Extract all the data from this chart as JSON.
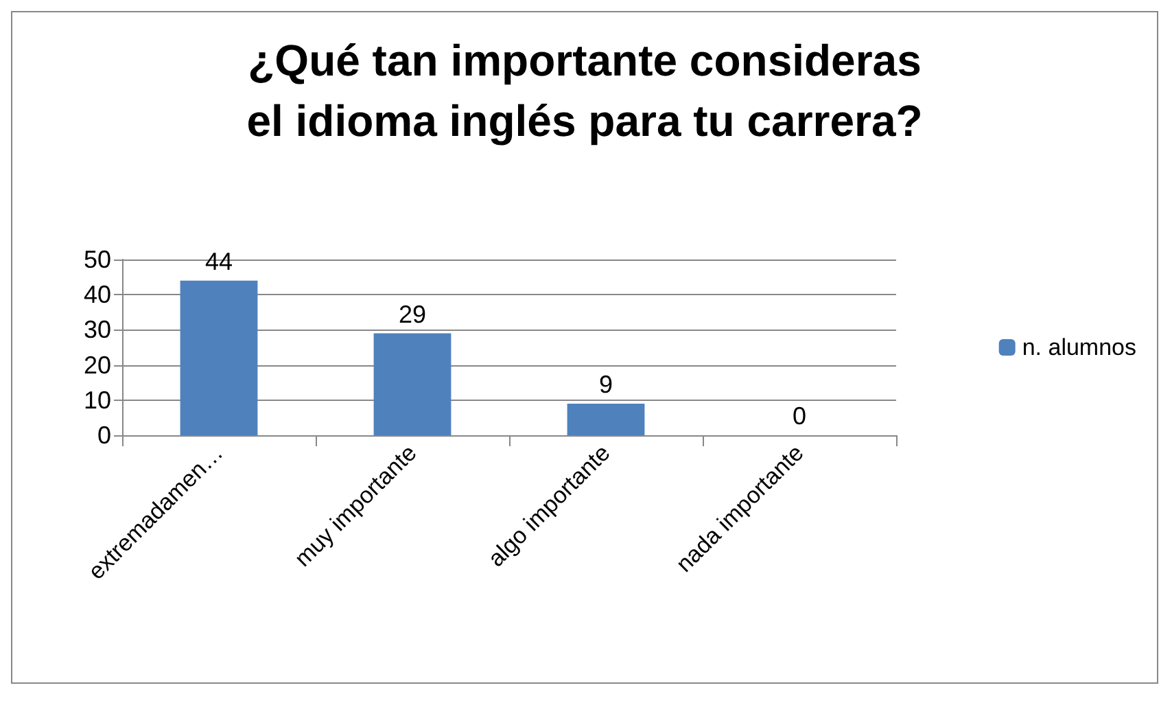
{
  "chart_data": {
    "type": "bar",
    "title": "¿Qué tan importante consideras\nel idioma inglés para tu carrera?",
    "categories": [
      "extremadamen…",
      "muy importante",
      "algo importante",
      "nada importante"
    ],
    "series": [
      {
        "name": "n. alumnos",
        "color": "#4f81bd",
        "values": [
          44,
          29,
          9,
          0
        ]
      }
    ],
    "ylim": [
      0,
      50
    ],
    "yticks": [
      0,
      10,
      20,
      30,
      40,
      50
    ],
    "grid": "y",
    "legend": "right",
    "data_labels": true
  }
}
